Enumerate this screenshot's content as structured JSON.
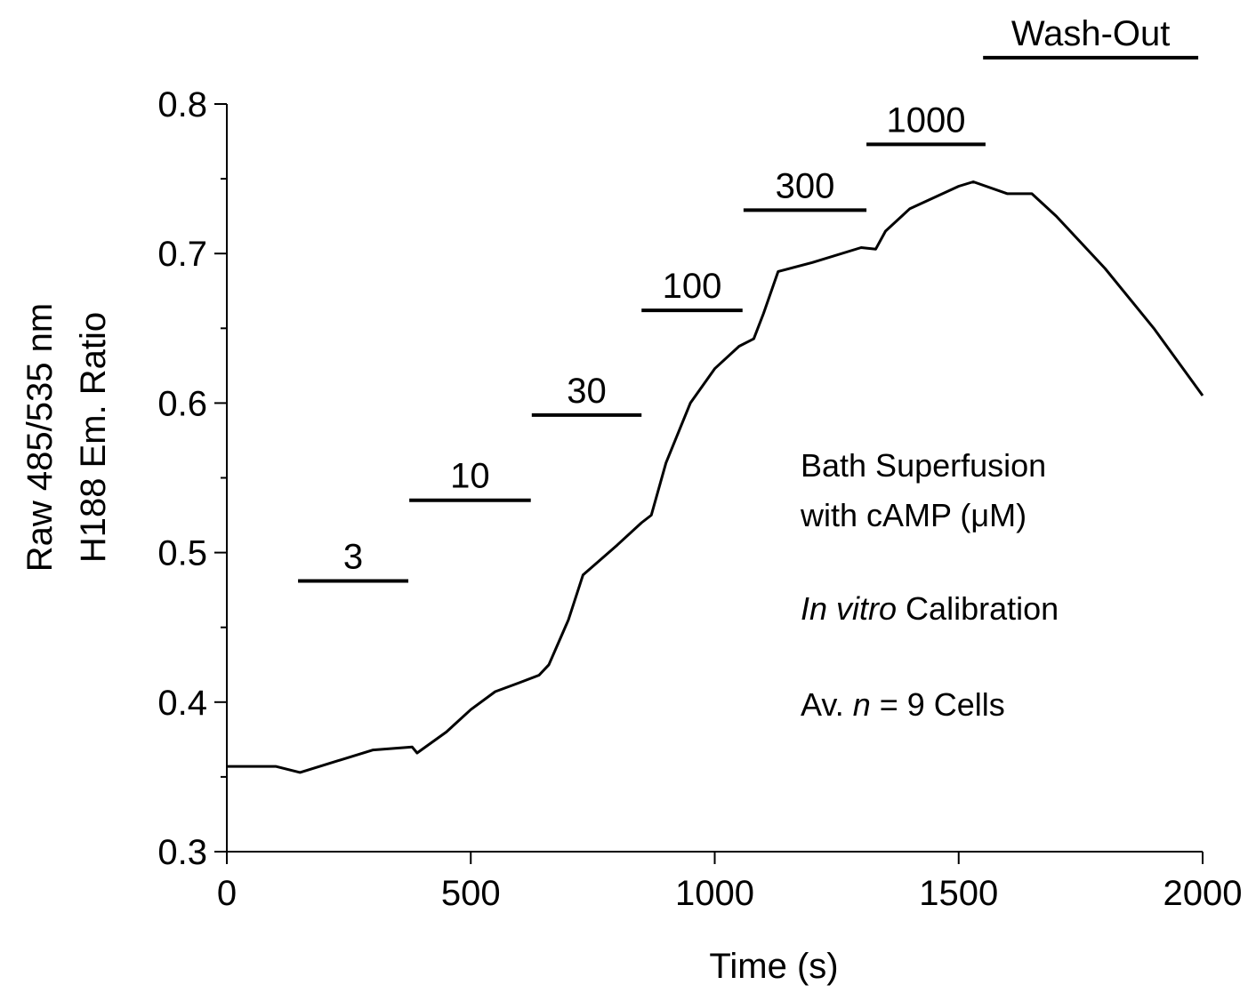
{
  "chart_data": {
    "type": "line",
    "xlabel": "Time (s)",
    "ylabel": [
      "Raw 485/535 nm",
      "H188 Em. Ratio"
    ],
    "x": [
      0,
      100,
      150,
      200,
      300,
      380,
      390,
      450,
      500,
      550,
      600,
      640,
      660,
      700,
      730,
      800,
      850,
      870,
      900,
      950,
      1000,
      1050,
      1080,
      1100,
      1130,
      1200,
      1300,
      1330,
      1350,
      1400,
      1500,
      1530,
      1600,
      1650,
      1700,
      1800,
      1900,
      2000
    ],
    "values": [
      0.357,
      0.357,
      0.353,
      0.358,
      0.368,
      0.37,
      0.366,
      0.38,
      0.395,
      0.407,
      0.413,
      0.418,
      0.425,
      0.455,
      0.485,
      0.505,
      0.52,
      0.525,
      0.56,
      0.6,
      0.623,
      0.638,
      0.643,
      0.66,
      0.688,
      0.694,
      0.704,
      0.703,
      0.715,
      0.73,
      0.745,
      0.748,
      0.74,
      0.74,
      0.725,
      0.69,
      0.65,
      0.605
    ],
    "color": "#000000",
    "xlim": [
      0,
      2000
    ],
    "ylim": [
      0.3,
      0.8
    ],
    "xticks": [
      0,
      500,
      1000,
      1500,
      2000
    ],
    "yticks": [
      0.3,
      0.4,
      0.5,
      0.6,
      0.7,
      0.8
    ],
    "yminorticks": [
      0.35,
      0.45,
      0.55,
      0.65,
      0.75
    ],
    "bars": [
      {
        "label": "3",
        "start": 146,
        "end": 372,
        "level": 0.481
      },
      {
        "label": "10",
        "start": 374,
        "end": 623,
        "level": 0.535
      },
      {
        "label": "30",
        "start": 625,
        "end": 850,
        "level": 0.592
      },
      {
        "label": "100",
        "start": 850,
        "end": 1057,
        "level": 0.662
      },
      {
        "label": "300",
        "start": 1059,
        "end": 1311,
        "level": 0.729
      },
      {
        "label": "1000",
        "start": 1311,
        "end": 1555,
        "level": 0.773
      },
      {
        "label": "Wash-Out",
        "start": 1550,
        "end": 1991,
        "level": 0.831
      }
    ],
    "notes": [
      {
        "parts": [
          "Bath Superfusion"
        ],
        "italic": [
          false
        ]
      },
      {
        "parts": [
          "with cAMP (μM)"
        ],
        "italic": [
          false
        ]
      },
      {
        "parts": [
          "In vitro",
          " Calibration"
        ],
        "italic": [
          true,
          false
        ]
      },
      {
        "parts": [
          "Av. ",
          "n",
          " = 9 Cells"
        ],
        "italic": [
          false,
          true,
          false
        ]
      }
    ]
  }
}
